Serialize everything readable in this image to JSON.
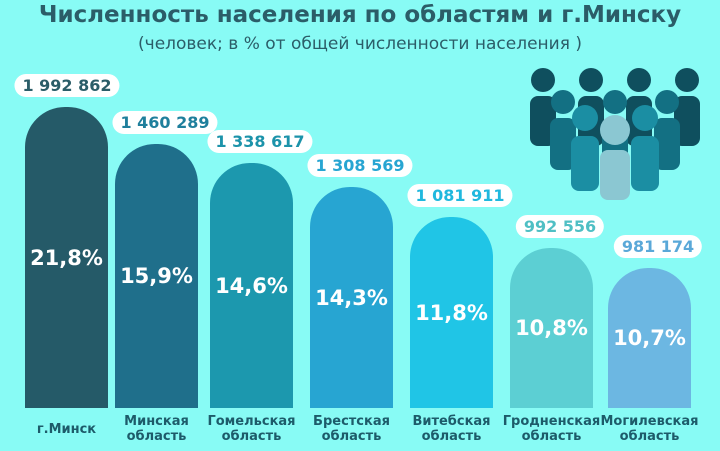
{
  "title": "Численность населения по областям и г.Минску",
  "subtitle": "(человек; в % от общей численности населения  )",
  "icon": "people-group-icon",
  "chart_data": {
    "type": "bar",
    "title": "Численность населения по областям и г.Минску",
    "subtitle": "(человек; в % от общей численности населения  )",
    "categories": [
      "г.Минск",
      "Минская область",
      "Гомельская область",
      "Брестская область",
      "Витебская область",
      "Гродненская область",
      "Могилевская область"
    ],
    "values": [
      1992862,
      1460289,
      1338617,
      1308569,
      1081911,
      992556,
      981174
    ],
    "value_labels": [
      "1 992 862",
      "1 460 289",
      "1 338 617",
      "1 308 569",
      "1 081 911",
      "992 556",
      "981 174"
    ],
    "percent_labels": [
      "21,8%",
      "15,9%",
      "14,6%",
      "14,3%",
      "11,8%",
      "10,8%",
      "10,7%"
    ],
    "colors": [
      "#255a68",
      "#1f6f8b",
      "#1c98ae",
      "#27a5d2",
      "#20c5e6",
      "#5ccfd3",
      "#6cb7e2"
    ],
    "label_colors": [
      "#2b5d68",
      "#1f7f9c",
      "#1c93aa",
      "#27a5d2",
      "#20b8de",
      "#4fbfc4",
      "#5aa8d8"
    ],
    "legend": "none",
    "grid": false
  }
}
